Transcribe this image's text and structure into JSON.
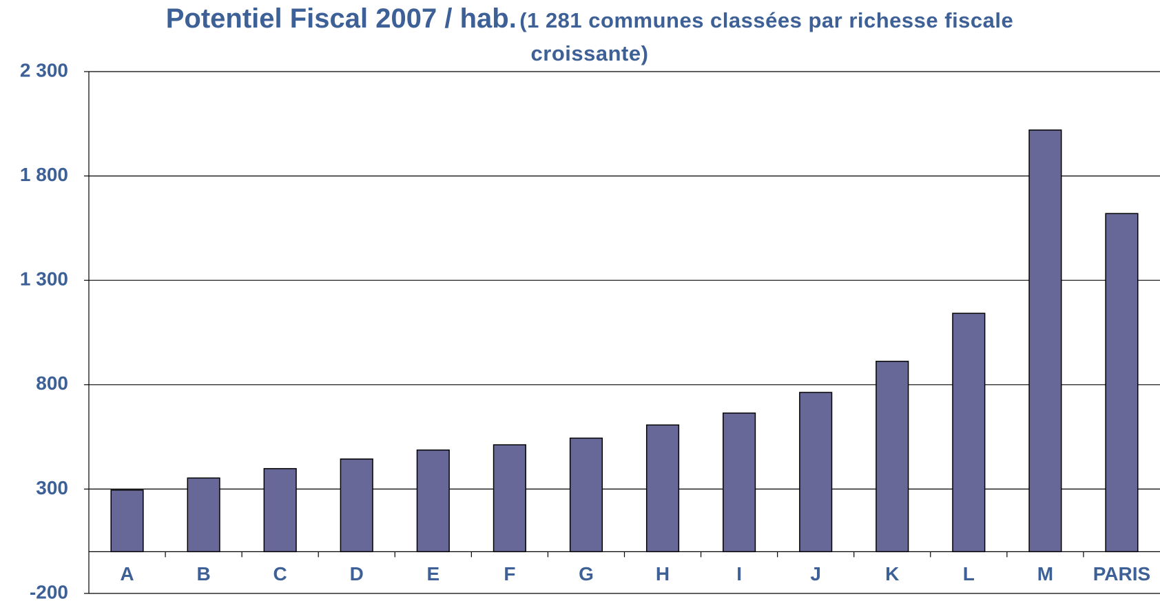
{
  "chart_data": {
    "type": "bar",
    "title": "Potentiel Fiscal 2007 / hab.",
    "subtitle": "(1 281 communes classées par richesse fiscale croissante)",
    "categories": [
      "A",
      "B",
      "C",
      "D",
      "E",
      "F",
      "G",
      "H",
      "I",
      "J",
      "K",
      "L",
      "M",
      "PARIS"
    ],
    "values": [
      295,
      353,
      398,
      444,
      487,
      512,
      544,
      607,
      664,
      763,
      912,
      1142,
      2020,
      1620
    ],
    "color": "#686898",
    "ylim": [
      -200,
      2300
    ],
    "yticks": [
      -200,
      300,
      800,
      {
        "value": 1300,
        "label": "1 300"
      },
      {
        "value": 1800,
        "label": "1 800"
      },
      {
        "value": 2300,
        "label": "2 300"
      }
    ],
    "grid": true
  }
}
